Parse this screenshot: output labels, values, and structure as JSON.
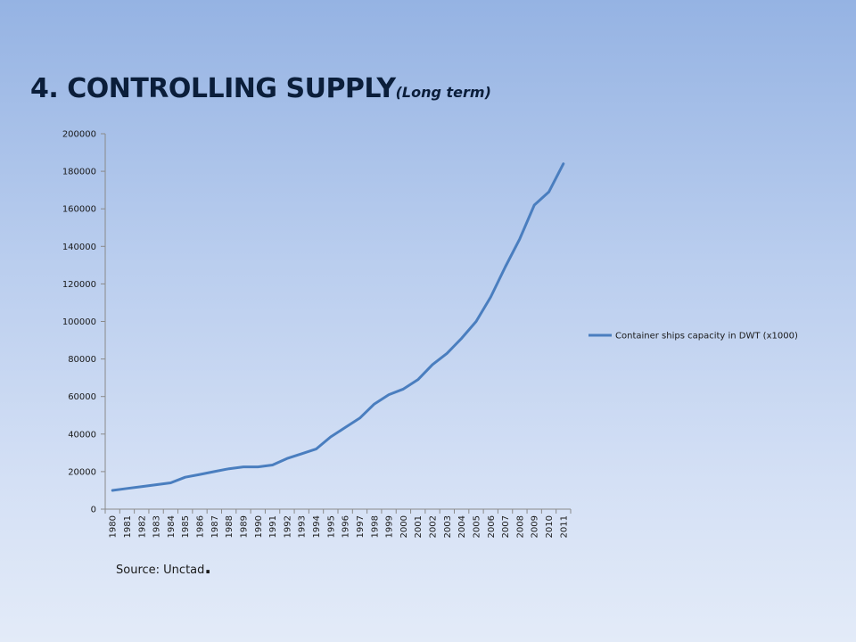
{
  "slide": {
    "title": "4. CONTROLLING SUPPLY",
    "subtitle": "(Long term)",
    "source": "Source: Unctad",
    "source_end": "."
  },
  "colors": {
    "series_line": "#4a7ebf",
    "axis": "#8a8a8a"
  },
  "chart_data": {
    "type": "line",
    "title": "",
    "xlabel": "",
    "ylabel": "",
    "ylim": [
      0,
      200000
    ],
    "yticks": [
      0,
      20000,
      40000,
      60000,
      80000,
      100000,
      120000,
      140000,
      160000,
      180000,
      200000
    ],
    "grid": false,
    "legend_position": "right",
    "categories": [
      "1980",
      "1981",
      "1982",
      "1983",
      "1984",
      "1985",
      "1986",
      "1987",
      "1988",
      "1989",
      "1990",
      "1991",
      "1992",
      "1993",
      "1994",
      "1995",
      "1996",
      "1997",
      "1998",
      "1999",
      "2000",
      "2001",
      "2002",
      "2003",
      "2004",
      "2005",
      "2006",
      "2007",
      "2008",
      "2009",
      "2010",
      "2011"
    ],
    "series": [
      {
        "name": "Container ships capacity in DWT (x1000)",
        "values": [
          10000,
          11000,
          12000,
          13000,
          14000,
          17000,
          18500,
          20000,
          21500,
          22500,
          22500,
          23500,
          27000,
          29500,
          32000,
          38500,
          43500,
          48500,
          56000,
          61000,
          64000,
          69000,
          77000,
          83000,
          91000,
          100000,
          113000,
          129000,
          144000,
          162000,
          169000,
          184000
        ]
      }
    ]
  }
}
